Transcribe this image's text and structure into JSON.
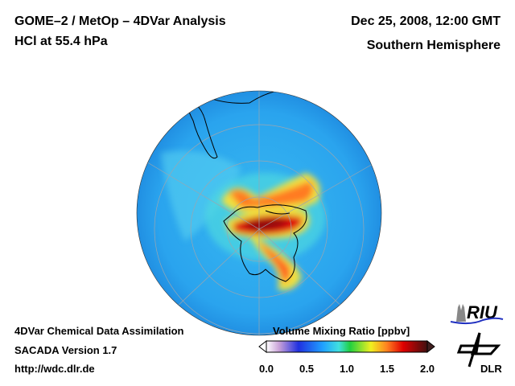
{
  "header": {
    "title_line1": "GOME–2 / MetOp – 4DVar Analysis",
    "title_line2": "HCl at 55.4 hPa",
    "date": "Dec 25, 2008, 12:00 GMT",
    "region": "Southern Hemisphere"
  },
  "footer": {
    "line1": "4DVar Chemical Data Assimilation",
    "line2": "SACADA Version 1.7",
    "line3": "http://wdc.dlr.de"
  },
  "colorbar": {
    "title": "Volume Mixing Ratio [ppbv]",
    "ticks": [
      "0.0",
      "0.5",
      "1.0",
      "1.5",
      "2.0"
    ],
    "range": [
      0.0,
      2.0
    ],
    "colors": [
      "#ffffff",
      "#c8a0d8",
      "#2030e0",
      "#20a0ff",
      "#40e0e0",
      "#20d040",
      "#f0f020",
      "#ff8020",
      "#e00000",
      "#401010"
    ]
  },
  "logos": {
    "riu": "RIU",
    "dlr": "DLR"
  }
}
